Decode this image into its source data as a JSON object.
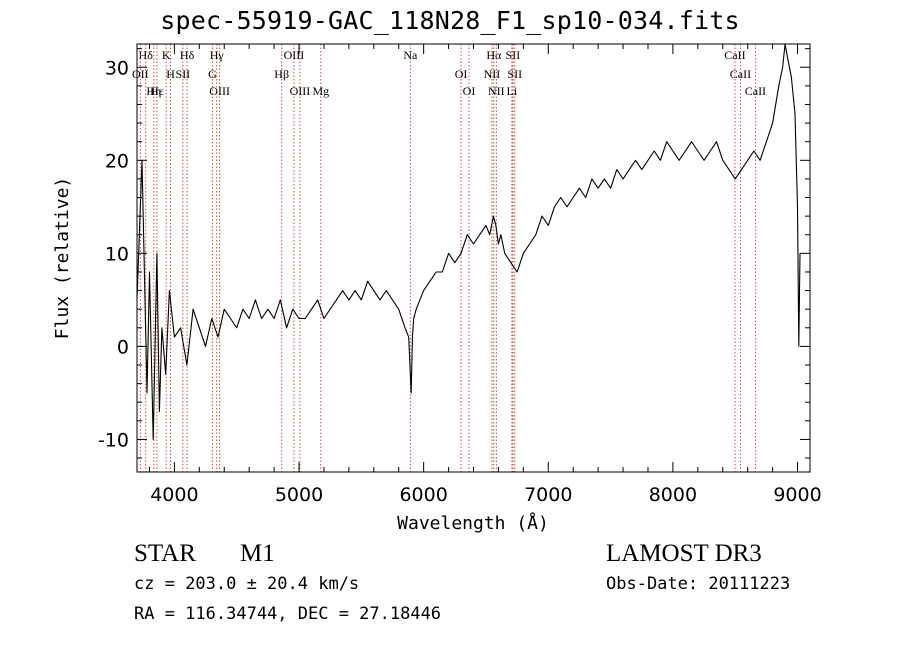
{
  "header": {
    "title": "spec-55919-GAC_118N28_F1_sp10-034.fits"
  },
  "info": {
    "object_class": "STAR",
    "subclass": "M1",
    "survey": "LAMOST DR3",
    "redshift": "cz = 203.0 ± 20.4 km/s",
    "obs_date": "Obs-Date: 20111223",
    "coords": "RA = 116.34744, DEC =  27.18446"
  },
  "chart_data": {
    "type": "line",
    "title": "spec-55919-GAC_118N28_F1_sp10-034.fits",
    "xlabel": "Wavelength (Å)",
    "ylabel": "Flux (relative)",
    "xlim": [
      3700,
      9100
    ],
    "ylim": [
      -13.5,
      32.5
    ],
    "xticks": [
      4000,
      5000,
      6000,
      7000,
      8000,
      9000
    ],
    "yticks": [
      -10,
      0,
      10,
      20,
      30
    ],
    "series": [
      {
        "name": "flux",
        "color": "#000000",
        "x": [
          3700,
          3740,
          3780,
          3800,
          3830,
          3860,
          3880,
          3900,
          3930,
          3960,
          4000,
          4050,
          4100,
          4150,
          4200,
          4250,
          4300,
          4350,
          4400,
          4450,
          4500,
          4550,
          4600,
          4650,
          4700,
          4750,
          4800,
          4850,
          4900,
          4950,
          5000,
          5050,
          5100,
          5150,
          5200,
          5250,
          5300,
          5350,
          5400,
          5450,
          5500,
          5550,
          5600,
          5650,
          5700,
          5750,
          5800,
          5850,
          5880,
          5900,
          5910,
          5920,
          5940,
          5970,
          6000,
          6050,
          6100,
          6150,
          6200,
          6250,
          6300,
          6350,
          6400,
          6450,
          6500,
          6530,
          6560,
          6580,
          6600,
          6620,
          6650,
          6700,
          6750,
          6800,
          6850,
          6900,
          6950,
          7000,
          7050,
          7100,
          7150,
          7200,
          7250,
          7300,
          7350,
          7400,
          7450,
          7500,
          7550,
          7600,
          7650,
          7700,
          7750,
          7800,
          7850,
          7900,
          7950,
          8000,
          8050,
          8100,
          8150,
          8200,
          8250,
          8300,
          8350,
          8400,
          8450,
          8500,
          8550,
          8600,
          8650,
          8700,
          8750,
          8800,
          8850,
          8880,
          8900,
          8920,
          8950,
          8980,
          9000,
          9010,
          9020
        ],
        "y": [
          5,
          20,
          -5,
          8,
          -10,
          10,
          -7,
          2,
          -3,
          6,
          1,
          2,
          -2,
          4,
          2,
          0,
          3,
          1,
          4,
          3,
          2,
          4,
          3,
          5,
          3,
          4,
          3,
          5,
          2,
          4,
          3,
          3,
          4,
          5,
          3,
          4,
          5,
          6,
          5,
          6,
          5,
          7,
          6,
          5,
          6,
          5,
          4,
          2,
          1,
          -5,
          1,
          3,
          4,
          5,
          6,
          7,
          8,
          8,
          10,
          9,
          10,
          12,
          11,
          12,
          13,
          12,
          14,
          13,
          11,
          12,
          10,
          9,
          8,
          10,
          11,
          12,
          14,
          13,
          15,
          16,
          15,
          16,
          17,
          16,
          18,
          17,
          18,
          17,
          19,
          18,
          19,
          20,
          19,
          20,
          21,
          20,
          22,
          21,
          20,
          21,
          22,
          21,
          20,
          21,
          22,
          20,
          19,
          18,
          19,
          20,
          21,
          20,
          22,
          24,
          28,
          30,
          33,
          31,
          29,
          25,
          15,
          0,
          10
        ]
      }
    ],
    "line_markers": [
      {
        "label": "Hδ",
        "x": 3770
      },
      {
        "label": "OII",
        "x": 3727
      },
      {
        "label": "Hε",
        "x": 3860
      },
      {
        "label": "K",
        "x": 3934
      },
      {
        "label": "H",
        "x": 3969
      },
      {
        "label": "Hη",
        "x": 3835
      },
      {
        "label": "Hδ",
        "x": 4102
      },
      {
        "label": "SII",
        "x": 4068
      },
      {
        "label": "OIII",
        "x": 4363
      },
      {
        "label": "Hγ",
        "x": 4340
      },
      {
        "label": "G",
        "x": 4305
      },
      {
        "label": "OIII",
        "x": 5007
      },
      {
        "label": "OIII",
        "x": 4959
      },
      {
        "label": "Hβ",
        "x": 4861
      },
      {
        "label": "Mg",
        "x": 5175
      },
      {
        "label": "Na",
        "x": 5893
      },
      {
        "label": "OI",
        "x": 6300
      },
      {
        "label": "OI",
        "x": 6364
      },
      {
        "label": "Hα",
        "x": 6563
      },
      {
        "label": "NII",
        "x": 6548
      },
      {
        "label": "NII",
        "x": 6583
      },
      {
        "label": "SII",
        "x": 6716
      },
      {
        "label": "SII",
        "x": 6731
      },
      {
        "label": "Li",
        "x": 6708
      },
      {
        "label": "CaII",
        "x": 8498
      },
      {
        "label": "CaII",
        "x": 8542
      },
      {
        "label": "CaII",
        "x": 8662
      }
    ]
  }
}
